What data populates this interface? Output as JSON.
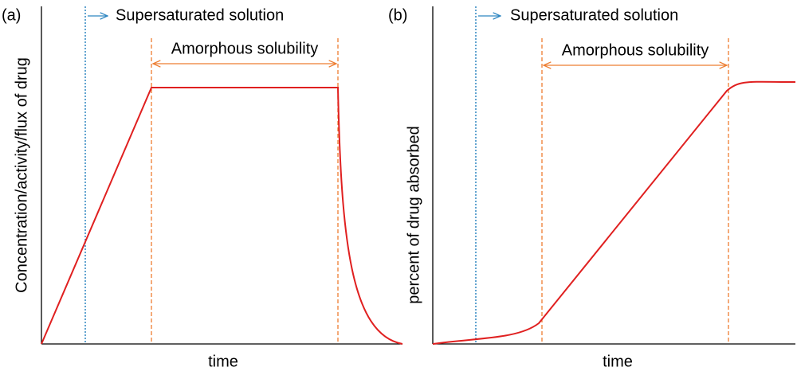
{
  "panels": [
    {
      "label": "(a)",
      "y_axis_label": "Concentration/activity/flux of drug",
      "x_axis_label": "time",
      "annotations": [
        "Supersaturated solution",
        "Amorphous solubility"
      ]
    },
    {
      "label": "(b)",
      "y_axis_label": "percent of drug absorbed",
      "x_axis_label": "time",
      "annotations": [
        "Supersaturated solution",
        "Amorphous solubility"
      ]
    }
  ]
}
